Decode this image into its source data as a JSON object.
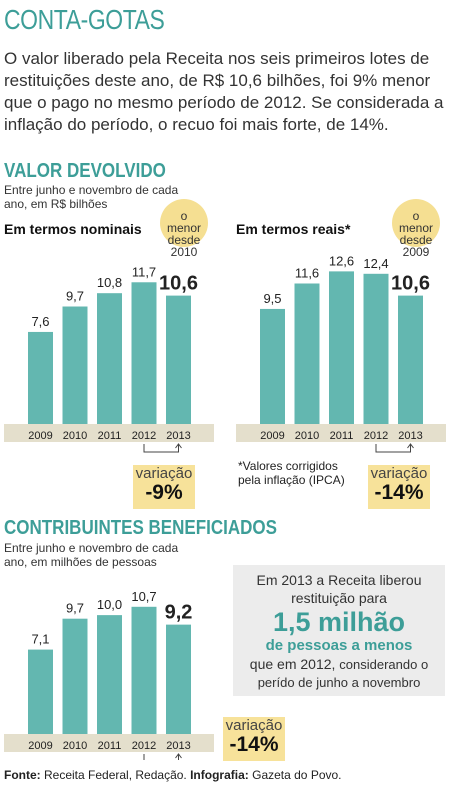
{
  "title": "CONTA-GOTAS",
  "intro": "O valor liberado pela Receita nos seis primeiros lotes de restituições deste ano, de R$ 10,6 bilhões, foi 9% menor que o pago no mesmo período de 2012. Se considerada a inflação do período, o recuo foi mais forte, de 14%.",
  "section1": {
    "title": "VALOR DEVOLVIDO",
    "subtitle": "Entre junho e novembro de cada ano, em R$ bilhões"
  },
  "section2": {
    "title": "CONTRIBUINTES BENEFICIADOS",
    "subtitle": "Entre junho e novembro de cada ano, em milhões de pessoas"
  },
  "chart_data": [
    {
      "type": "bar",
      "title": "Em termos nominais",
      "categories": [
        "2009",
        "2010",
        "2011",
        "2012",
        "2013"
      ],
      "values": [
        7.6,
        9.7,
        10.8,
        11.7,
        10.6
      ],
      "value_labels": [
        "7,6",
        "9,7",
        "10,8",
        "11,7",
        "10,6"
      ],
      "bubble": "o menor desde 2010",
      "variation_label": "variação",
      "variation_value": "-9%",
      "bar_color": "#63b7b0"
    },
    {
      "type": "bar",
      "title": "Em termos reais*",
      "categories": [
        "2009",
        "2010",
        "2011",
        "2012",
        "2013"
      ],
      "values": [
        9.5,
        11.6,
        12.6,
        12.4,
        10.6
      ],
      "value_labels": [
        "9,5",
        "11,6",
        "12,6",
        "12,4",
        "10,6"
      ],
      "bubble": "o menor desde 2009",
      "variation_label": "variação",
      "variation_value": "-14%",
      "note": "*Valores corrigidos pela inflação (IPCA)",
      "bar_color": "#63b7b0"
    },
    {
      "type": "bar",
      "title": "",
      "categories": [
        "2009",
        "2010",
        "2011",
        "2012",
        "2013"
      ],
      "values": [
        7.1,
        9.7,
        10.0,
        10.7,
        9.2
      ],
      "value_labels": [
        "7,1",
        "9,7",
        "10,0",
        "10,7",
        "9,2"
      ],
      "variation_label": "variação",
      "variation_value": "-14%",
      "bar_color": "#63b7b0"
    }
  ],
  "info_box": {
    "line1": "Em 2013 a Receita liberou",
    "line2": "restituição para",
    "highlight_big": "1,5 milhão",
    "highlight_small": "de pessoas a menos",
    "line3_pre": "que em 2012,",
    "line3_post": "considerando o",
    "line4": "perído de junho a novembro"
  },
  "source": {
    "label": "Fonte:",
    "text": "Receita Federal, Redação.",
    "infographic_label": "Infografia:",
    "infographic_text": "Gazeta do Povo."
  },
  "colors": {
    "accent": "#3d9e98",
    "bar": "#63b7b0",
    "axis_band": "#e4dfcc",
    "highlight": "#f7e29a"
  }
}
